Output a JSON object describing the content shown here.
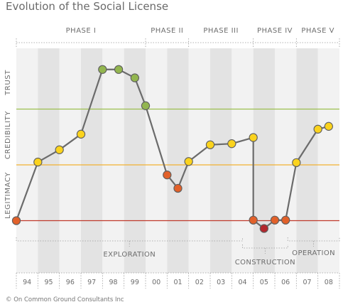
{
  "chart_data": {
    "type": "line",
    "title": "Evolution of the Social License",
    "footer": "© On Common Ground Consultants Inc",
    "y_levels": [
      "LEGITIMACY",
      "CREDIBILITY",
      "TRUST"
    ],
    "categories": [
      "94",
      "95",
      "96",
      "97",
      "98",
      "99",
      "00",
      "01",
      "02",
      "03",
      "04",
      "05",
      "06",
      "07",
      "08"
    ],
    "phases": [
      {
        "label": "PHASE I",
        "from": 0,
        "to": 6
      },
      {
        "label": "PHASE II",
        "from": 6,
        "to": 8
      },
      {
        "label": "PHASE III",
        "from": 8,
        "to": 11
      },
      {
        "label": "PHASE IV",
        "from": 11,
        "to": 13
      },
      {
        "label": "PHASE V",
        "from": 13,
        "to": 15
      }
    ],
    "periods": [
      {
        "label": "EXPLORATION",
        "from": 0,
        "to": 10.5
      },
      {
        "label": "CONSTRUCTION",
        "from": 10.5,
        "to": 12.6
      },
      {
        "label": "OPERATION",
        "from": 12.6,
        "to": 15
      }
    ],
    "threshold_lines": [
      {
        "name": "legitimacy",
        "value": 0,
        "color": "#c0392b"
      },
      {
        "name": "credibility",
        "value": 1,
        "color": "#f2b233"
      },
      {
        "name": "trust",
        "value": 2,
        "color": "#9bbf4e"
      }
    ],
    "ylim": [
      -0.2,
      3.0
    ],
    "series": [
      {
        "points": [
          {
            "x": 0.0,
            "y": 0.0,
            "level": "low"
          },
          {
            "x": 1.0,
            "y": 1.05,
            "level": "mid"
          },
          {
            "x": 2.0,
            "y": 1.27,
            "level": "mid"
          },
          {
            "x": 3.0,
            "y": 1.55,
            "level": "mid"
          },
          {
            "x": 4.0,
            "y": 2.71,
            "level": "high"
          },
          {
            "x": 4.75,
            "y": 2.71,
            "level": "high"
          },
          {
            "x": 5.5,
            "y": 2.56,
            "level": "high"
          },
          {
            "x": 6.0,
            "y": 2.06,
            "level": "high"
          },
          {
            "x": 7.0,
            "y": 0.82,
            "level": "low"
          },
          {
            "x": 7.5,
            "y": 0.58,
            "level": "low"
          },
          {
            "x": 8.0,
            "y": 1.06,
            "level": "mid"
          },
          {
            "x": 9.0,
            "y": 1.36,
            "level": "mid"
          },
          {
            "x": 10.0,
            "y": 1.38,
            "level": "mid"
          },
          {
            "x": 11.0,
            "y": 1.49,
            "level": "mid"
          },
          {
            "x": 11.0,
            "y": 0.01,
            "level": "low"
          },
          {
            "x": 11.5,
            "y": -0.14,
            "level": "lowest"
          },
          {
            "x": 12.0,
            "y": 0.01,
            "level": "low"
          },
          {
            "x": 12.5,
            "y": 0.01,
            "level": "low"
          },
          {
            "x": 13.0,
            "y": 1.04,
            "level": "mid"
          },
          {
            "x": 14.0,
            "y": 1.64,
            "level": "mid"
          },
          {
            "x": 14.5,
            "y": 1.69,
            "level": "mid"
          }
        ]
      }
    ],
    "colors": {
      "line": "#6b6b6b",
      "low": "#e2612a",
      "lowest": "#b3262c",
      "mid": "#fbd31d",
      "high": "#93b64f",
      "band_light": "#f2f2f2",
      "band_dark": "#e3e3e3",
      "text": "#6d6d6d"
    }
  }
}
